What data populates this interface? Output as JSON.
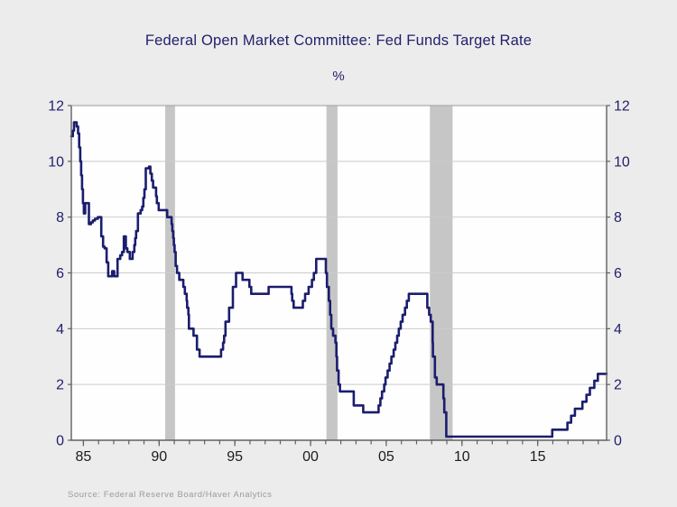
{
  "chart_data": {
    "type": "line",
    "line_style": "step-after",
    "title": "Federal Open Market Committee: Fed Funds Target Rate",
    "unit_label": "%",
    "source": "Source:  Federal Reserve Board/Haver Analytics",
    "x_domain": [
      1984.2,
      2019.55
    ],
    "y_domain": [
      0,
      12
    ],
    "y_ticks": [
      0,
      2,
      4,
      6,
      8,
      10,
      12
    ],
    "x_major_ticks": [
      {
        "year": 1985,
        "label": "85"
      },
      {
        "year": 1990,
        "label": "90"
      },
      {
        "year": 1995,
        "label": "95"
      },
      {
        "year": 2000,
        "label": "00"
      },
      {
        "year": 2005,
        "label": "05"
      },
      {
        "year": 2010,
        "label": "10"
      },
      {
        "year": 2015,
        "label": "15"
      }
    ],
    "x_minor_tick_years": [
      1985,
      1986,
      1987,
      1988,
      1989,
      1990,
      1991,
      1992,
      1993,
      1994,
      1995,
      1996,
      1997,
      1998,
      1999,
      2000,
      2001,
      2002,
      2003,
      2004,
      2005,
      2006,
      2007,
      2008,
      2009,
      2010,
      2011,
      2012,
      2013,
      2014,
      2015,
      2016,
      2017,
      2018,
      2019
    ],
    "grid_on": true,
    "legend": "none",
    "recession_bands": [
      [
        1990.4,
        1991.05
      ],
      [
        2001.05,
        2001.78
      ],
      [
        2007.88,
        2009.38
      ]
    ],
    "series": [
      {
        "name": "Fed Funds Target Rate",
        "points": [
          [
            1984.2,
            10.9
          ],
          [
            1984.3,
            11.1
          ],
          [
            1984.38,
            11.4
          ],
          [
            1984.55,
            11.25
          ],
          [
            1984.65,
            11.0
          ],
          [
            1984.72,
            10.5
          ],
          [
            1984.79,
            10.0
          ],
          [
            1984.85,
            9.5
          ],
          [
            1984.91,
            9.0
          ],
          [
            1984.97,
            8.5
          ],
          [
            1985.03,
            8.13
          ],
          [
            1985.12,
            8.5
          ],
          [
            1985.36,
            7.75
          ],
          [
            1985.5,
            7.81
          ],
          [
            1985.62,
            7.88
          ],
          [
            1985.76,
            7.94
          ],
          [
            1985.95,
            8.0
          ],
          [
            1986.18,
            7.31
          ],
          [
            1986.3,
            6.94
          ],
          [
            1986.4,
            6.88
          ],
          [
            1986.53,
            6.38
          ],
          [
            1986.64,
            5.88
          ],
          [
            1986.9,
            6.06
          ],
          [
            1987.03,
            5.88
          ],
          [
            1987.25,
            6.5
          ],
          [
            1987.43,
            6.63
          ],
          [
            1987.55,
            6.75
          ],
          [
            1987.67,
            7.31
          ],
          [
            1987.8,
            6.88
          ],
          [
            1987.9,
            6.75
          ],
          [
            1988.06,
            6.5
          ],
          [
            1988.25,
            6.75
          ],
          [
            1988.36,
            7.0
          ],
          [
            1988.42,
            7.25
          ],
          [
            1988.48,
            7.5
          ],
          [
            1988.6,
            8.13
          ],
          [
            1988.78,
            8.25
          ],
          [
            1988.88,
            8.38
          ],
          [
            1988.96,
            8.69
          ],
          [
            1989.03,
            9.0
          ],
          [
            1989.12,
            9.75
          ],
          [
            1989.33,
            9.81
          ],
          [
            1989.42,
            9.56
          ],
          [
            1989.52,
            9.31
          ],
          [
            1989.6,
            9.06
          ],
          [
            1989.8,
            8.75
          ],
          [
            1989.85,
            8.5
          ],
          [
            1989.97,
            8.25
          ],
          [
            1990.53,
            8.0
          ],
          [
            1990.82,
            7.75
          ],
          [
            1990.87,
            7.5
          ],
          [
            1990.93,
            7.25
          ],
          [
            1990.97,
            7.0
          ],
          [
            1991.02,
            6.75
          ],
          [
            1991.09,
            6.25
          ],
          [
            1991.18,
            6.0
          ],
          [
            1991.33,
            5.75
          ],
          [
            1991.6,
            5.5
          ],
          [
            1991.7,
            5.25
          ],
          [
            1991.82,
            5.0
          ],
          [
            1991.85,
            4.75
          ],
          [
            1991.93,
            4.5
          ],
          [
            1991.97,
            4.0
          ],
          [
            1992.27,
            3.75
          ],
          [
            1992.5,
            3.25
          ],
          [
            1992.67,
            3.0
          ],
          [
            1994.09,
            3.25
          ],
          [
            1994.22,
            3.5
          ],
          [
            1994.29,
            3.75
          ],
          [
            1994.38,
            4.25
          ],
          [
            1994.62,
            4.75
          ],
          [
            1994.87,
            5.5
          ],
          [
            1995.08,
            6.0
          ],
          [
            1995.51,
            5.75
          ],
          [
            1995.96,
            5.5
          ],
          [
            1996.08,
            5.25
          ],
          [
            1997.23,
            5.5
          ],
          [
            1998.74,
            5.25
          ],
          [
            1998.79,
            5.0
          ],
          [
            1998.88,
            4.75
          ],
          [
            1999.49,
            5.0
          ],
          [
            1999.64,
            5.25
          ],
          [
            1999.87,
            5.5
          ],
          [
            2000.09,
            5.75
          ],
          [
            2000.22,
            6.0
          ],
          [
            2000.37,
            6.5
          ],
          [
            2001.01,
            6.0
          ],
          [
            2001.08,
            5.5
          ],
          [
            2001.21,
            5.0
          ],
          [
            2001.29,
            4.5
          ],
          [
            2001.37,
            4.0
          ],
          [
            2001.49,
            3.75
          ],
          [
            2001.64,
            3.5
          ],
          [
            2001.71,
            3.0
          ],
          [
            2001.75,
            2.5
          ],
          [
            2001.85,
            2.0
          ],
          [
            2001.94,
            1.75
          ],
          [
            2002.85,
            1.25
          ],
          [
            2003.48,
            1.0
          ],
          [
            2004.49,
            1.25
          ],
          [
            2004.61,
            1.5
          ],
          [
            2004.72,
            1.75
          ],
          [
            2004.86,
            2.0
          ],
          [
            2004.95,
            2.25
          ],
          [
            2005.09,
            2.5
          ],
          [
            2005.22,
            2.75
          ],
          [
            2005.34,
            3.0
          ],
          [
            2005.49,
            3.25
          ],
          [
            2005.6,
            3.5
          ],
          [
            2005.72,
            3.75
          ],
          [
            2005.83,
            4.0
          ],
          [
            2005.95,
            4.25
          ],
          [
            2006.08,
            4.5
          ],
          [
            2006.24,
            4.75
          ],
          [
            2006.36,
            5.0
          ],
          [
            2006.49,
            5.25
          ],
          [
            2007.71,
            4.75
          ],
          [
            2007.83,
            4.5
          ],
          [
            2007.94,
            4.25
          ],
          [
            2008.06,
            3.5
          ],
          [
            2008.08,
            3.0
          ],
          [
            2008.21,
            2.25
          ],
          [
            2008.33,
            2.0
          ],
          [
            2008.77,
            1.5
          ],
          [
            2008.83,
            1.0
          ],
          [
            2008.96,
            0.13
          ],
          [
            2015.96,
            0.38
          ],
          [
            2016.96,
            0.63
          ],
          [
            2017.21,
            0.88
          ],
          [
            2017.46,
            1.13
          ],
          [
            2017.95,
            1.38
          ],
          [
            2018.22,
            1.63
          ],
          [
            2018.45,
            1.88
          ],
          [
            2018.74,
            2.13
          ],
          [
            2018.97,
            2.38
          ],
          [
            2019.55,
            2.38
          ]
        ]
      }
    ],
    "colors": {
      "background": "#ececec",
      "plot_background": "#fefefe",
      "line": "#1b1d6e",
      "grid": "#cbcbcb",
      "top_border": "#ababab",
      "recession_band": "#c6c6c6",
      "axis": "#606060",
      "title_text": "#23206f",
      "y_label_text": "#23206f",
      "x_label_text": "#1c1c1c",
      "source_text": "#9a9a9a"
    }
  }
}
